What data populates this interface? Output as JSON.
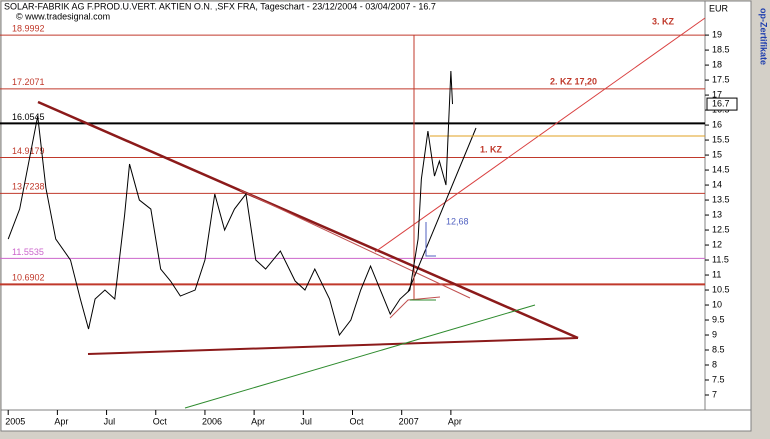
{
  "chart_data": {
    "type": "line",
    "title": "SOLAR-FABRIK AG F.PROD.U.VERT. AKTIEN O.N. ,SFX FRA, Tageschart - 23/12/2004 - 03/04/2007 - 16.7",
    "source": "© www.tradesignal.com",
    "y_axis_label": "EUR",
    "side_label": "op-Zertifikate",
    "xlim": [
      -0.5,
      42.5
    ],
    "xticks": [
      {
        "value": 0,
        "label": "2005"
      },
      {
        "value": 3,
        "label": "Apr"
      },
      {
        "value": 6,
        "label": "Jul"
      },
      {
        "value": 9,
        "label": "Oct"
      },
      {
        "value": 12,
        "label": "2006"
      },
      {
        "value": 15,
        "label": "Apr"
      },
      {
        "value": 18,
        "label": "Jul"
      },
      {
        "value": 21,
        "label": "Oct"
      },
      {
        "value": 24,
        "label": "2007"
      },
      {
        "value": 27,
        "label": "Apr"
      }
    ],
    "ylim": [
      6.5,
      20.17
    ],
    "yticks": [
      7,
      7.5,
      8,
      8.5,
      9,
      9.5,
      10,
      10.5,
      11,
      11.5,
      12,
      12.5,
      13,
      13.5,
      14,
      14.5,
      15,
      15.5,
      16,
      16.5,
      17,
      17.5,
      18,
      18.5,
      19
    ],
    "series": [
      {
        "color": "#000000",
        "x": [
          0,
          0.7,
          1.8,
          2.3,
          2.9,
          3.8,
          4.4,
          4.9,
          5.3,
          5.9,
          6.5,
          7.1,
          7.4,
          8.0,
          8.7,
          9.3,
          9.9,
          10.5,
          11.4,
          12.0,
          12.6,
          13.2,
          13.8,
          14.5,
          15.1,
          15.7,
          16.6,
          17.5,
          18.1,
          18.7,
          19.6,
          20.2,
          20.9,
          21.5,
          22.1,
          22.7,
          23.3,
          23.9,
          24.5,
          25.0,
          25.2,
          25.6,
          26.0,
          26.3,
          26.7,
          27.0,
          27.1
        ],
        "values": [
          12.2,
          13.2,
          16.3,
          13.9,
          12.2,
          11.5,
          10.2,
          9.2,
          10.2,
          10.5,
          10.2,
          13,
          14.7,
          13.5,
          13.2,
          11.2,
          10.8,
          10.3,
          10.5,
          11.5,
          13.7,
          12.5,
          13.2,
          13.7,
          11.5,
          11.2,
          11.8,
          10.8,
          10.5,
          11.2,
          10.2,
          9,
          9.5,
          10.5,
          11.3,
          10.5,
          9.7,
          10.2,
          10.5,
          12.2,
          14.2,
          15.8,
          14.3,
          14.8,
          14,
          17.8,
          16.7
        ]
      }
    ],
    "levels": [
      18.9992,
      17.2071,
      16.0545,
      14.9179,
      13.7238,
      11.5535,
      10.6902
    ],
    "level_colors": [
      "#c0392b",
      "#c0392b",
      "#000000",
      "#c0392b",
      "#c0392b",
      "#cc66cc",
      "#c0392b"
    ],
    "annotations": [
      "3. KZ",
      "2. KZ 17,20",
      "1. KZ",
      "12,68"
    ]
  }
}
